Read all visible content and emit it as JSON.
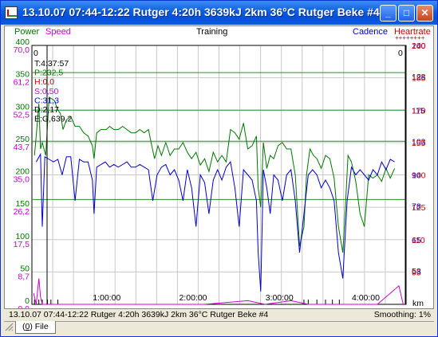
{
  "window": {
    "title": "13.10.07 07:44-12:22 Rutger 4:20h 3639kJ 2km 36°C Rutger Beke #4",
    "buttons": [
      "_",
      "□",
      "✕"
    ]
  },
  "header": {
    "power": "Power",
    "speed": "Speed",
    "center": "Training",
    "cadence": "Cadence",
    "heartrate": "Heartrate",
    "hr_marker": "++++++++"
  },
  "cursor_info": {
    "x_left": "0",
    "x_right": "0",
    "lines": [
      "T:4:37:57",
      "P:232,5",
      "H:0,0",
      "S:0,50",
      "C:31,3",
      "D:2,17",
      "E:G,639,2"
    ]
  },
  "statusbar": {
    "left": "13.10.07 07:44-12:22 Rutger 4:20h 3639kJ 2km 36°C Rutger Beke #4",
    "right": "Smoothing: 1%"
  },
  "tab": {
    "key": "0",
    "label": "File"
  },
  "colors": {
    "power": "#007700",
    "speed": "#cc00cc",
    "cadence": "#0000cc",
    "heartrate": "#cc0000",
    "zone_line": "#2e8b2e",
    "grid": "#c8c8c8"
  },
  "chart_data": {
    "type": "line",
    "title": "Training",
    "x_unit": "km",
    "x_ticks": [
      "1:00:00",
      "2:00:00",
      "3:00:00",
      "4:00:00"
    ],
    "x_range_hours": [
      0,
      4.333
    ],
    "power_axis": {
      "label": "Power",
      "ticks": [
        "0",
        "50",
        "100",
        "150",
        "200",
        "250",
        "300",
        "350",
        "400"
      ],
      "range": [
        0,
        400
      ]
    },
    "speed_axis": {
      "label": "Speed",
      "ticks": [
        "0,0",
        "8,7",
        "17,5",
        "26,2",
        "35,0",
        "43,7",
        "52,5",
        "61,2",
        "70,0"
      ],
      "range": [
        0,
        70
      ]
    },
    "cadence_axis": {
      "label": "Cadence",
      "ticks": [
        "53",
        "65",
        "78",
        "90",
        "103",
        "115",
        "128",
        "140"
      ],
      "range": [
        40,
        140
      ]
    },
    "hr_axis": {
      "label": "Heartrate",
      "ticks": [
        "95",
        "110",
        "125",
        "140",
        "155",
        "170",
        "185",
        "200"
      ],
      "range": [
        80,
        200
      ]
    },
    "zone_lines_power": [
      358,
      300,
      252,
      162
    ],
    "series": [
      {
        "name": "Power",
        "color": "#007700",
        "points": [
          [
            0.03,
            230
          ],
          [
            0.05,
            260
          ],
          [
            0.08,
            310
          ],
          [
            0.1,
            240
          ],
          [
            0.12,
            250
          ],
          [
            0.16,
            230
          ],
          [
            0.2,
            320
          ],
          [
            0.26,
            315
          ],
          [
            0.3,
            300
          ],
          [
            0.33,
            295
          ],
          [
            0.36,
            270
          ],
          [
            0.4,
            285
          ],
          [
            0.45,
            290
          ],
          [
            0.5,
            275
          ],
          [
            0.55,
            275
          ],
          [
            0.6,
            265
          ],
          [
            0.65,
            260
          ],
          [
            0.7,
            245
          ],
          [
            0.72,
            225
          ],
          [
            0.75,
            265
          ],
          [
            0.8,
            270
          ],
          [
            0.86,
            270
          ],
          [
            0.9,
            275
          ],
          [
            0.95,
            270
          ],
          [
            1.0,
            270
          ],
          [
            1.05,
            275
          ],
          [
            1.1,
            270
          ],
          [
            1.15,
            265
          ],
          [
            1.2,
            265
          ],
          [
            1.25,
            270
          ],
          [
            1.3,
            265
          ],
          [
            1.35,
            270
          ],
          [
            1.38,
            250
          ],
          [
            1.42,
            225
          ],
          [
            1.46,
            245
          ],
          [
            1.5,
            230
          ],
          [
            1.55,
            250
          ],
          [
            1.6,
            230
          ],
          [
            1.65,
            240
          ],
          [
            1.7,
            240
          ],
          [
            1.75,
            250
          ],
          [
            1.8,
            235
          ],
          [
            1.85,
            225
          ],
          [
            1.9,
            235
          ],
          [
            1.95,
            215
          ],
          [
            2.0,
            225
          ],
          [
            2.05,
            205
          ],
          [
            2.1,
            235
          ],
          [
            2.15,
            220
          ],
          [
            2.2,
            230
          ],
          [
            2.25,
            220
          ],
          [
            2.3,
            270
          ],
          [
            2.35,
            265
          ],
          [
            2.4,
            255
          ],
          [
            2.45,
            280
          ],
          [
            2.5,
            240
          ],
          [
            2.55,
            245
          ],
          [
            2.6,
            260
          ],
          [
            2.62,
            180
          ],
          [
            2.65,
            150
          ],
          [
            2.68,
            250
          ],
          [
            2.72,
            210
          ],
          [
            2.76,
            230
          ],
          [
            2.8,
            225
          ],
          [
            2.85,
            245
          ],
          [
            2.9,
            250
          ],
          [
            2.95,
            240
          ],
          [
            3.0,
            240
          ],
          [
            3.05,
            200
          ],
          [
            3.1,
            90
          ],
          [
            3.15,
            120
          ],
          [
            3.18,
            200
          ],
          [
            3.22,
            240
          ],
          [
            3.26,
            230
          ],
          [
            3.3,
            225
          ],
          [
            3.35,
            210
          ],
          [
            3.4,
            230
          ],
          [
            3.45,
            225
          ],
          [
            3.5,
            195
          ],
          [
            3.55,
            120
          ],
          [
            3.6,
            80
          ],
          [
            3.63,
            150
          ],
          [
            3.66,
            230
          ],
          [
            3.7,
            220
          ],
          [
            3.75,
            190
          ],
          [
            3.8,
            140
          ],
          [
            3.85,
            120
          ],
          [
            3.9,
            200
          ],
          [
            3.95,
            195
          ],
          [
            4.0,
            200
          ],
          [
            4.05,
            190
          ],
          [
            4.1,
            210
          ],
          [
            4.15,
            195
          ],
          [
            4.2,
            210
          ]
        ]
      },
      {
        "name": "Cadence",
        "color": "#0000cc",
        "points": [
          [
            0.05,
            95
          ],
          [
            0.1,
            98
          ],
          [
            0.12,
            70
          ],
          [
            0.15,
            97
          ],
          [
            0.2,
            96
          ],
          [
            0.25,
            95
          ],
          [
            0.3,
            96
          ],
          [
            0.35,
            90
          ],
          [
            0.4,
            97
          ],
          [
            0.45,
            97
          ],
          [
            0.5,
            80
          ],
          [
            0.55,
            96
          ],
          [
            0.6,
            95
          ],
          [
            0.65,
            95
          ],
          [
            0.7,
            88
          ],
          [
            0.72,
            75
          ],
          [
            0.75,
            93
          ],
          [
            0.8,
            94
          ],
          [
            0.85,
            95
          ],
          [
            0.9,
            93
          ],
          [
            0.95,
            94
          ],
          [
            1.0,
            93
          ],
          [
            1.05,
            94
          ],
          [
            1.1,
            95
          ],
          [
            1.15,
            93
          ],
          [
            1.2,
            93
          ],
          [
            1.25,
            94
          ],
          [
            1.3,
            93
          ],
          [
            1.35,
            92
          ],
          [
            1.4,
            80
          ],
          [
            1.45,
            90
          ],
          [
            1.5,
            93
          ],
          [
            1.55,
            94
          ],
          [
            1.6,
            90
          ],
          [
            1.65,
            92
          ],
          [
            1.7,
            88
          ],
          [
            1.75,
            80
          ],
          [
            1.8,
            92
          ],
          [
            1.85,
            85
          ],
          [
            1.9,
            70
          ],
          [
            1.95,
            90
          ],
          [
            2.0,
            87
          ],
          [
            2.05,
            75
          ],
          [
            2.1,
            88
          ],
          [
            2.15,
            92
          ],
          [
            2.2,
            88
          ],
          [
            2.25,
            93
          ],
          [
            2.3,
            95
          ],
          [
            2.35,
            85
          ],
          [
            2.4,
            70
          ],
          [
            2.45,
            92
          ],
          [
            2.5,
            90
          ],
          [
            2.55,
            88
          ],
          [
            2.6,
            80
          ],
          [
            2.62,
            60
          ],
          [
            2.65,
            45
          ],
          [
            2.68,
            92
          ],
          [
            2.72,
            85
          ],
          [
            2.76,
            75
          ],
          [
            2.8,
            90
          ],
          [
            2.85,
            88
          ],
          [
            2.9,
            80
          ],
          [
            2.95,
            90
          ],
          [
            3.0,
            92
          ],
          [
            3.05,
            80
          ],
          [
            3.1,
            60
          ],
          [
            3.15,
            75
          ],
          [
            3.2,
            90
          ],
          [
            3.25,
            92
          ],
          [
            3.3,
            90
          ],
          [
            3.35,
            85
          ],
          [
            3.4,
            88
          ],
          [
            3.45,
            85
          ],
          [
            3.5,
            80
          ],
          [
            3.55,
            60
          ],
          [
            3.6,
            50
          ],
          [
            3.65,
            80
          ],
          [
            3.7,
            93
          ],
          [
            3.75,
            90
          ],
          [
            3.8,
            92
          ],
          [
            3.85,
            90
          ],
          [
            3.9,
            88
          ],
          [
            3.95,
            92
          ],
          [
            4.0,
            90
          ],
          [
            4.05,
            95
          ],
          [
            4.1,
            92
          ],
          [
            4.15,
            96
          ],
          [
            4.2,
            95
          ]
        ]
      },
      {
        "name": "Speed",
        "color": "#cc00cc",
        "points": [
          [
            0.02,
            3
          ],
          [
            0.05,
            0
          ],
          [
            0.08,
            7
          ],
          [
            0.1,
            2
          ],
          [
            0.12,
            0
          ],
          [
            2.0,
            0
          ],
          [
            2.5,
            1
          ],
          [
            2.7,
            0
          ],
          [
            3.0,
            1
          ],
          [
            3.2,
            0
          ],
          [
            3.8,
            0
          ],
          [
            4.0,
            0
          ],
          [
            4.25,
            5
          ],
          [
            4.3,
            0
          ]
        ]
      }
    ]
  }
}
